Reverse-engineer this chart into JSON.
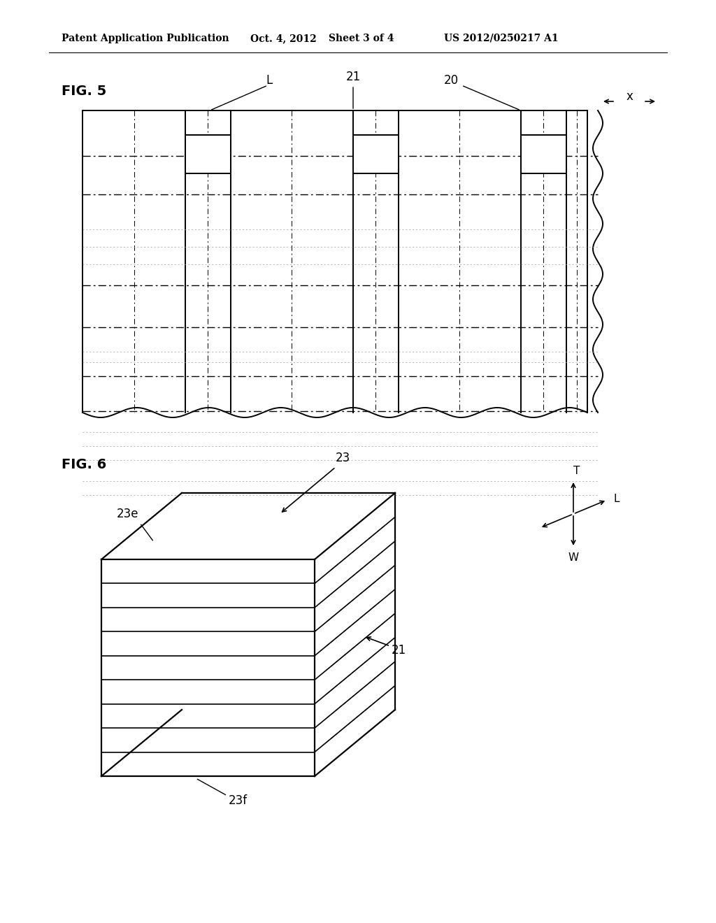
{
  "bg_color": "#ffffff",
  "header_text": "Patent Application Publication",
  "header_date": "Oct. 4, 2012",
  "header_sheet": "Sheet 3 of 4",
  "header_patent": "US 2012/0250217 A1",
  "fig5_label": "FIG. 5",
  "fig6_label": "FIG. 6",
  "line_color": "#000000",
  "light_line_color": "#999999"
}
